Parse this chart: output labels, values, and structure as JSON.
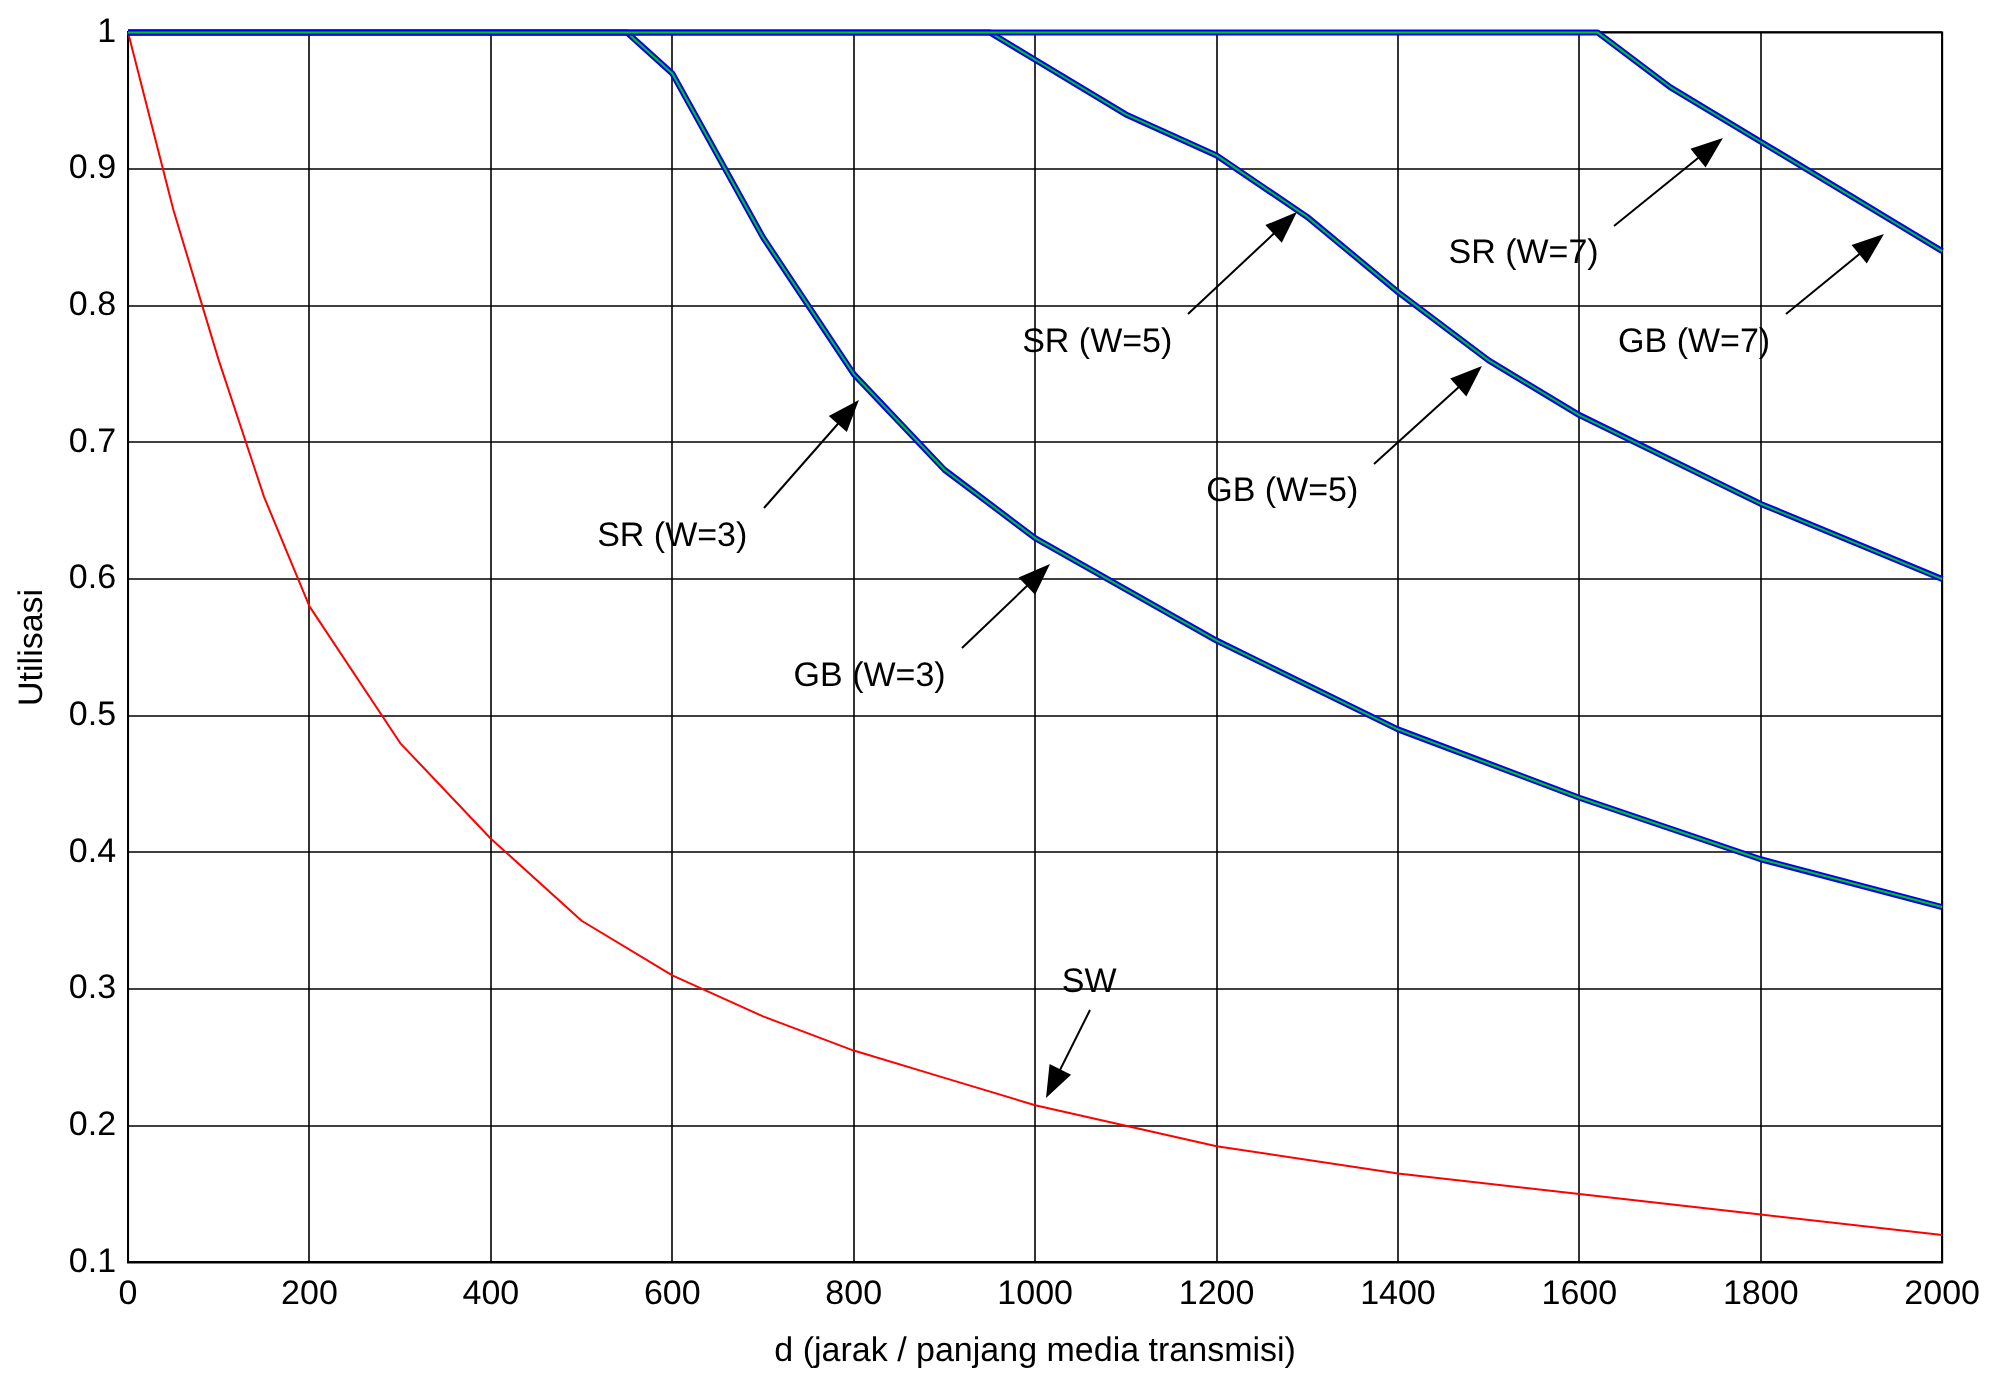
{
  "chart_data": {
    "type": "line",
    "xlabel": "d (jarak / panjang media transmisi)",
    "ylabel": "Utilisasi",
    "xlim": [
      0,
      2000
    ],
    "xticks": [
      0,
      200,
      400,
      600,
      800,
      1000,
      1200,
      1400,
      1600,
      1800,
      2000
    ],
    "ylim": [
      0.1,
      1
    ],
    "yticks": [
      0.1,
      0.2,
      0.3,
      0.4,
      0.5,
      0.6,
      0.7,
      0.8,
      0.9,
      1
    ],
    "grid": true,
    "legend": false,
    "marker": "none",
    "line_style": "solid",
    "series": [
      {
        "color": "#ff0000",
        "x": [
          0,
          50,
          100,
          150,
          200,
          300,
          400,
          500,
          600,
          700,
          800,
          900,
          1000,
          1200,
          1400,
          1600,
          1800,
          2000
        ],
        "values": [
          1,
          0.87,
          0.76,
          0.66,
          0.58,
          0.48,
          0.41,
          0.35,
          0.31,
          0.28,
          0.255,
          0.235,
          0.215,
          0.185,
          0.165,
          0.15,
          0.135,
          0.12
        ]
      },
      {
        "color": "#0000ff",
        "x": [
          0,
          550,
          600,
          700,
          800,
          900,
          1000,
          1200,
          1400,
          1600,
          1800,
          2000
        ],
        "values": [
          1,
          1,
          0.97,
          0.85,
          0.75,
          0.68,
          0.63,
          0.555,
          0.49,
          0.44,
          0.395,
          0.36
        ]
      },
      {
        "color": "#00cc00",
        "x": [
          0,
          550,
          600,
          700,
          800,
          900,
          1000,
          1200,
          1400,
          1600,
          1800,
          2000
        ],
        "values": [
          1,
          1,
          0.97,
          0.85,
          0.75,
          0.68,
          0.63,
          0.555,
          0.49,
          0.44,
          0.395,
          0.36
        ]
      },
      {
        "color": "#0000ff",
        "x": [
          0,
          950,
          1000,
          1100,
          1200,
          1300,
          1400,
          1500,
          1600,
          1800,
          2000
        ],
        "values": [
          1,
          1,
          0.98,
          0.94,
          0.91,
          0.865,
          0.81,
          0.76,
          0.72,
          0.655,
          0.6
        ]
      },
      {
        "color": "#00cc00",
        "x": [
          0,
          950,
          1000,
          1100,
          1200,
          1300,
          1400,
          1500,
          1600,
          1800,
          2000
        ],
        "values": [
          1,
          1,
          0.98,
          0.94,
          0.91,
          0.865,
          0.81,
          0.76,
          0.72,
          0.655,
          0.6
        ]
      },
      {
        "color": "#0000ff",
        "x": [
          0,
          1620,
          1700,
          1800,
          1900,
          1950,
          2000
        ],
        "values": [
          1,
          1,
          0.96,
          0.92,
          0.88,
          0.86,
          0.84
        ]
      },
      {
        "color": "#00cc00",
        "x": [
          0,
          1620,
          1700,
          1800,
          1900,
          1950,
          2000
        ],
        "values": [
          1,
          1,
          0.96,
          0.92,
          0.88,
          0.86,
          0.84
        ]
      }
    ],
    "annotations": [
      "SR (W=3)",
      "GB (W=3)",
      "SR (W=5)",
      "GB (W=5)",
      "SR (W=7)",
      "GB (W=7)",
      "SW"
    ]
  }
}
